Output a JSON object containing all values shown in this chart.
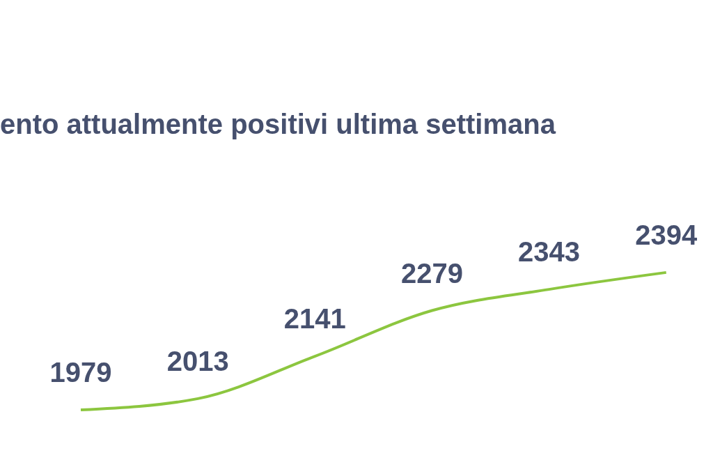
{
  "chart_data": {
    "type": "line",
    "title": "ento attualmente positivi ultima settimana",
    "categories": [
      null,
      null,
      null,
      null,
      null,
      null,
      null
    ],
    "series": [
      {
        "color": "#8cc63f",
        "values": [
          null,
          1979,
          2013,
          2141,
          2279,
          2343,
          2394
        ]
      }
    ],
    "data_labels": true,
    "marker": "none",
    "line_style": "solid"
  }
}
